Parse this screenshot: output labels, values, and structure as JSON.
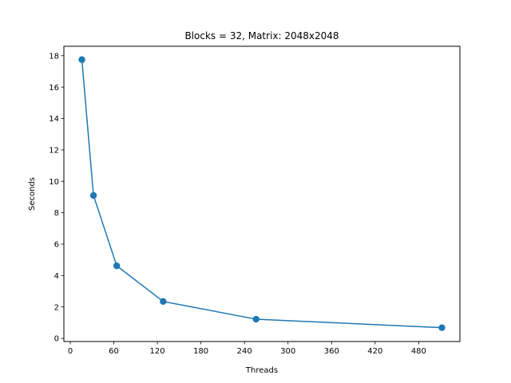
{
  "chart_data": {
    "type": "line",
    "title": "Blocks = 32, Matrix: 2048x2048",
    "xlabel": "Threads",
    "ylabel": "Seconds",
    "x": [
      16,
      32,
      64,
      128,
      256,
      512
    ],
    "series": [
      {
        "values": [
          17.75,
          9.1,
          4.62,
          2.35,
          1.22,
          0.68
        ],
        "color": "#1f77b4",
        "marker": "circle"
      }
    ],
    "xlim": [
      -8.8,
      536.8
    ],
    "ylim": [
      -0.2,
      18.6
    ],
    "xticks": [
      0,
      60,
      120,
      180,
      240,
      300,
      360,
      420,
      480
    ],
    "yticks": [
      0,
      2,
      4,
      6,
      8,
      10,
      12,
      14,
      16,
      18
    ],
    "grid": false,
    "legend": "none"
  }
}
